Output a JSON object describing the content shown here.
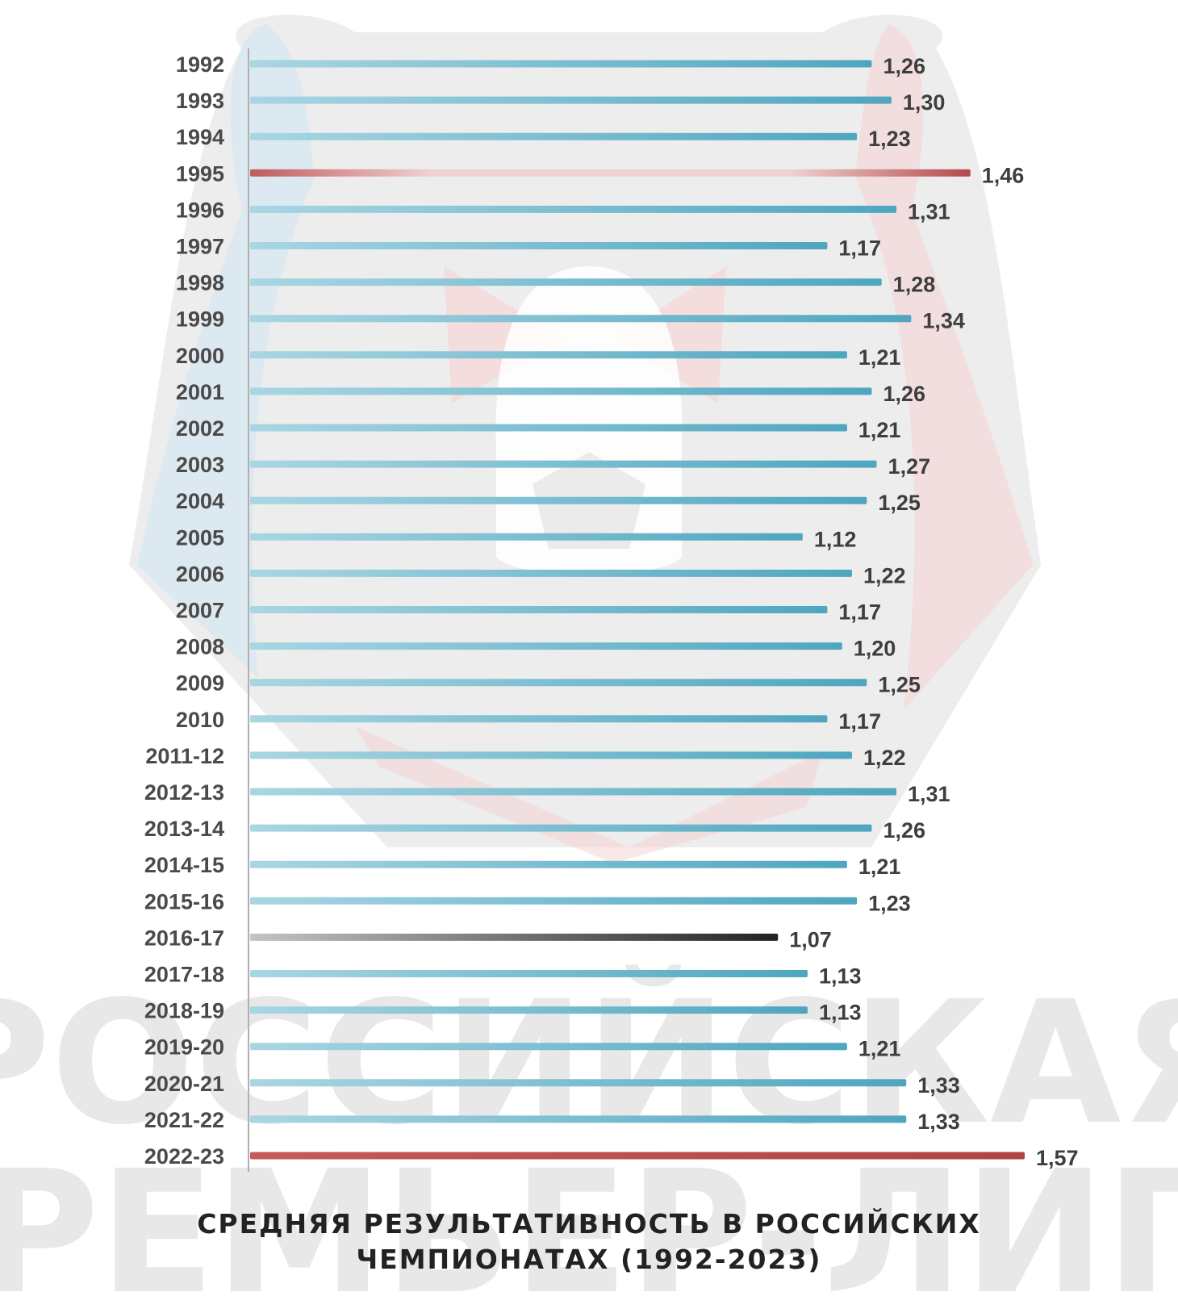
{
  "chart_data": {
    "type": "bar",
    "orientation": "horizontal",
    "title": "СРЕДНЯЯ РЕЗУЛЬТАТИВНОСТЬ В РОССИЙСКИХ ЧЕМПИОНАТАХ (1992-2023)",
    "title_lines": [
      "СРЕДНЯЯ РЕЗУЛЬТАТИВНОСТЬ В РОССИЙСКИХ",
      "ЧЕМПИОНАТАХ (1992-2023)"
    ],
    "categories": [
      "1992",
      "1993",
      "1994",
      "1995",
      "1996",
      "1997",
      "1998",
      "1999",
      "2000",
      "2001",
      "2002",
      "2003",
      "2004",
      "2005",
      "2006",
      "2007",
      "2008",
      "2009",
      "2010",
      "2011-12",
      "2012-13",
      "2013-14",
      "2014-15",
      "2015-16",
      "2016-17",
      "2017-18",
      "2018-19",
      "2019-20",
      "2020-21",
      "2021-22",
      "2022-23"
    ],
    "values": [
      1.26,
      1.3,
      1.23,
      1.46,
      1.31,
      1.17,
      1.28,
      1.34,
      1.21,
      1.26,
      1.21,
      1.27,
      1.25,
      1.12,
      1.22,
      1.17,
      1.2,
      1.25,
      1.17,
      1.22,
      1.31,
      1.26,
      1.21,
      1.23,
      1.07,
      1.13,
      1.13,
      1.21,
      1.33,
      1.33,
      1.57
    ],
    "value_labels": [
      "1,26",
      "1,30",
      "1,23",
      "1,46",
      "1,31",
      "1,17",
      "1,28",
      "1,34",
      "1,21",
      "1,26",
      "1,21",
      "1,27",
      "1,25",
      "1,12",
      "1,22",
      "1,17",
      "1,20",
      "1,25",
      "1,17",
      "1,22",
      "1,31",
      "1,26",
      "1,21",
      "1,23",
      "1,07",
      "1,13",
      "1,13",
      "1,21",
      "1,33",
      "1,33",
      "1,57"
    ],
    "highlight": {
      "max": [
        "1995",
        "2022-23"
      ],
      "min": [
        "2016-17"
      ]
    },
    "xlim": [
      0,
      1.57
    ],
    "xlabel": "",
    "ylabel": "",
    "grid": false,
    "legend": "none"
  },
  "colors": {
    "bar_normal": "#5fafc6",
    "bar_normal_light": "#a9d6e3",
    "bar_max": "#b54a4a",
    "bar_max_light": "#f2d6d6",
    "bar_min": "#2a2a2a",
    "bar_min_light": "#bbbbbb",
    "watermark_gray": "#d9d9d9",
    "watermark_blue": "#cfe6f2",
    "watermark_red": "#f6d2d2"
  },
  "watermark": {
    "lines": [
      "РОССИЙСКАЯ",
      "ПРЕМЬЕР-ЛИГА"
    ]
  }
}
